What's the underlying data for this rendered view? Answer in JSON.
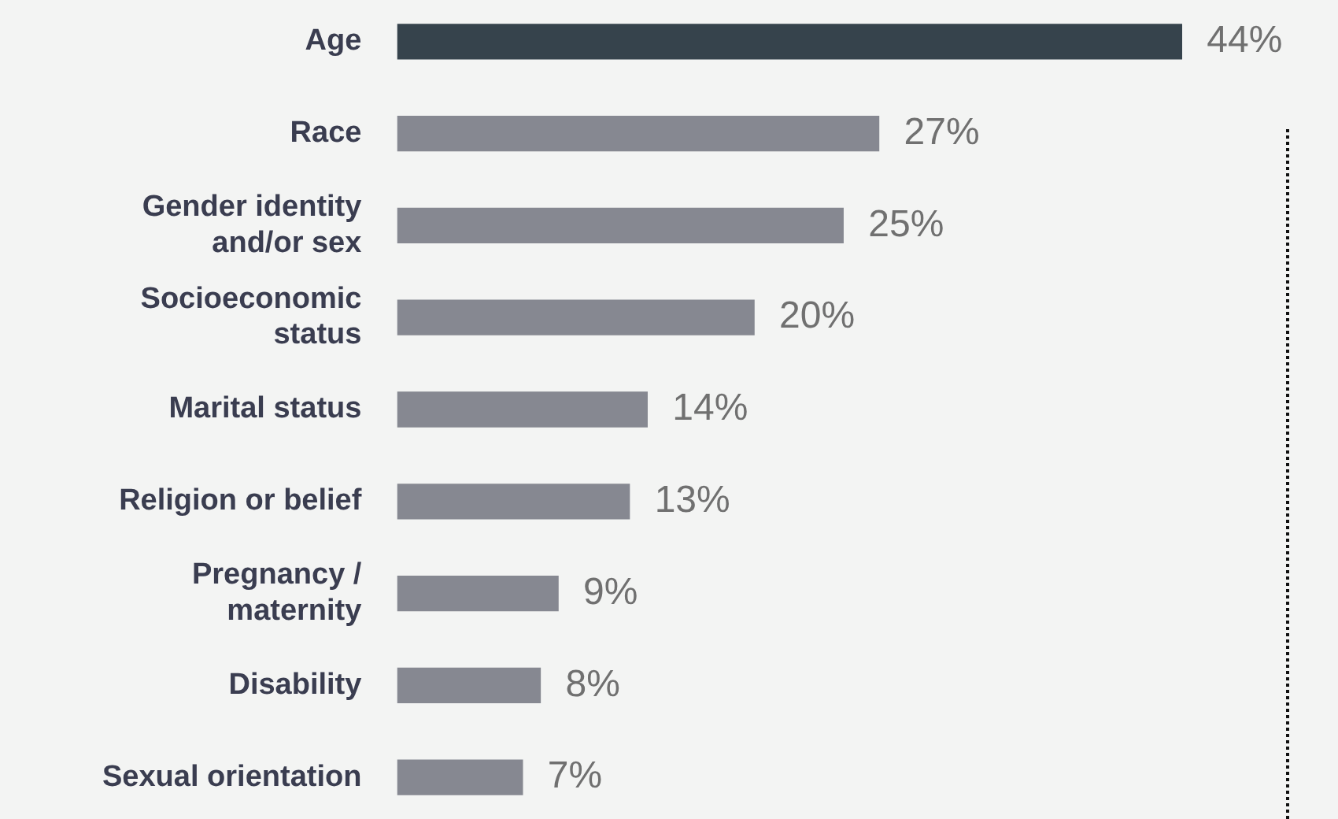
{
  "chart_data": {
    "type": "bar",
    "orientation": "horizontal",
    "categories": [
      "Age",
      "Race",
      "Gender identity and/or sex",
      "Socioeconomic status",
      "Marital status",
      "Religion or belief",
      "Pregnancy / maternity",
      "Disability",
      "Sexual orientation"
    ],
    "values": [
      44,
      27,
      25,
      20,
      14,
      13,
      9,
      8,
      7
    ],
    "colors": [
      "#36434c",
      "#868891",
      "#868891",
      "#868891",
      "#868891",
      "#868891",
      "#868891",
      "#868891",
      "#868891"
    ],
    "value_labels": [
      "44%",
      "27%",
      "25%",
      "20%",
      "14%",
      "13%",
      "9%",
      "8%",
      "7%"
    ],
    "data_labels": false
  }
}
